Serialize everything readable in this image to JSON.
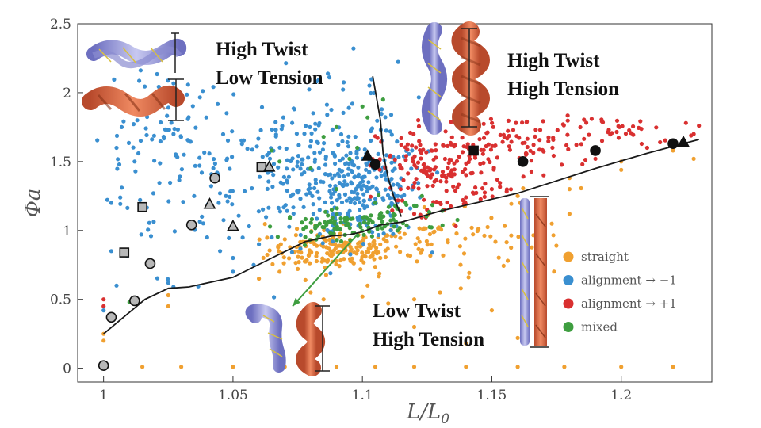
{
  "chart_data": {
    "type": "scatter",
    "title": "",
    "xlabel": "L/L₀",
    "ylabel": "Φa",
    "xlim": [
      0.99,
      1.235
    ],
    "ylim": [
      -0.1,
      2.5
    ],
    "xticks": [
      1,
      1.05,
      1.1,
      1.15,
      1.2
    ],
    "yticks": [
      0,
      0.5,
      1,
      1.5,
      2,
      2.5
    ],
    "xtick_labels": [
      "1",
      "1.05",
      "1.1",
      "1.15",
      "1.2"
    ],
    "ytick_labels": [
      "0",
      "0.5",
      "1",
      "1.5",
      "2",
      "2.5"
    ],
    "grid": false,
    "legend_position": "lower-right",
    "colors": {
      "straight": "#f0a030",
      "alignment_minus": "#3a8fd0",
      "alignment_plus": "#d93030",
      "mixed": "#3e9e40"
    },
    "series": [
      {
        "name": "straight",
        "color": "#f0a030",
        "clusters": [
          {
            "cx": 1.09,
            "cy": 0.86,
            "sx": 0.013,
            "sy": 0.07,
            "n": 170
          },
          {
            "cx": 1.125,
            "cy": 0.92,
            "sx": 0.018,
            "sy": 0.11,
            "n": 60
          },
          {
            "cx": 1.16,
            "cy": 1.08,
            "sx": 0.012,
            "sy": 0.13,
            "n": 22
          }
        ],
        "points": [
          [
            1,
            0.01
          ],
          [
            1.015,
            0.01
          ],
          [
            1.03,
            0.01
          ],
          [
            1.05,
            0.01
          ],
          [
            1.07,
            0.01
          ],
          [
            1.09,
            0.01
          ],
          [
            1.105,
            0.01
          ],
          [
            1.12,
            0.01
          ],
          [
            1.14,
            0.01
          ],
          [
            1.16,
            0.01
          ],
          [
            1.178,
            0.01
          ],
          [
            1.2,
            0.01
          ],
          [
            1.22,
            0.01
          ],
          [
            1,
            0.2
          ],
          [
            1,
            0.25
          ],
          [
            1.025,
            0.45
          ],
          [
            1.025,
            0.53
          ],
          [
            1.2,
            1.44
          ],
          [
            1.2,
            1.5
          ],
          [
            1.22,
            1.58
          ],
          [
            1.228,
            1.52
          ],
          [
            1.18,
            1.3
          ],
          [
            1.18,
            1.38
          ],
          [
            1.16,
            1.25
          ],
          [
            1.17,
            1.22
          ],
          [
            1.075,
            0.72
          ],
          [
            1.078,
            0.64
          ],
          [
            1.08,
            0.55
          ],
          [
            1.085,
            0.5
          ],
          [
            1.1,
            0.52
          ],
          [
            1.102,
            0.6
          ],
          [
            1.11,
            0.47
          ],
          [
            1.12,
            0.5
          ],
          [
            1.13,
            0.55
          ],
          [
            1.138,
            0.58
          ],
          [
            1.141,
            0.66
          ],
          [
            1.15,
            0.42
          ],
          [
            1.12,
            0.3
          ],
          [
            1.14,
            0.18
          ],
          [
            1.16,
            0.22
          ],
          [
            1.06,
            0.65
          ],
          [
            1.068,
            0.7
          ]
        ]
      },
      {
        "name": "alignment → −1",
        "color": "#3a8fd0",
        "clusters": [
          {
            "cx": 1.1,
            "cy": 1.3,
            "sx": 0.012,
            "sy": 0.18,
            "n": 240
          },
          {
            "cx": 1.075,
            "cy": 1.4,
            "sx": 0.016,
            "sy": 0.22,
            "n": 130
          },
          {
            "cx": 1.04,
            "cy": 1.45,
            "sx": 0.018,
            "sy": 0.3,
            "n": 70
          },
          {
            "cx": 1.025,
            "cy": 1.9,
            "sx": 0.008,
            "sy": 0.18,
            "n": 40
          },
          {
            "cx": 1.085,
            "cy": 1.9,
            "sx": 0.018,
            "sy": 0.18,
            "n": 38
          },
          {
            "cx": 1.01,
            "cy": 1.2,
            "sx": 0.01,
            "sy": 0.3,
            "n": 22
          }
        ],
        "points": [
          [
            1,
            0.42
          ],
          [
            1.025,
            0.62
          ],
          [
            1.027,
            0.59
          ],
          [
            1.005,
            0.6
          ],
          [
            1.003,
            0.85
          ],
          [
            1.003,
            1.2
          ],
          [
            1.007,
            1.75
          ],
          [
            1.005,
            1.6
          ],
          [
            1.012,
            1.5
          ],
          [
            1.013,
            1.8
          ],
          [
            1.035,
            1.25
          ],
          [
            1.038,
            1.1
          ],
          [
            1.04,
            0.95
          ],
          [
            1.045,
            0.85
          ],
          [
            1.05,
            0.8
          ],
          [
            1.05,
            0.7
          ],
          [
            1.058,
            0.75
          ],
          [
            1.06,
            0.9
          ],
          [
            1.065,
            0.95
          ]
        ]
      },
      {
        "name": "alignment → +1",
        "color": "#d93030",
        "clusters": [
          {
            "cx": 1.13,
            "cy": 1.45,
            "sx": 0.012,
            "sy": 0.16,
            "n": 180
          },
          {
            "cx": 1.16,
            "cy": 1.63,
            "sx": 0.015,
            "sy": 0.1,
            "n": 75
          },
          {
            "cx": 1.2,
            "cy": 1.73,
            "sx": 0.015,
            "sy": 0.05,
            "n": 40
          }
        ],
        "points": [
          [
            1,
            0.45
          ],
          [
            1,
            0.5
          ],
          [
            1.12,
            1.12
          ],
          [
            1.125,
            1.15
          ],
          [
            1.13,
            1.2
          ],
          [
            1.115,
            1.14
          ],
          [
            1.14,
            1.24
          ],
          [
            1.15,
            1.3
          ],
          [
            1.17,
            1.4
          ],
          [
            1.185,
            1.48
          ],
          [
            1.19,
            1.52
          ],
          [
            1.21,
            1.6
          ],
          [
            1.215,
            1.64
          ],
          [
            1.228,
            1.7
          ],
          [
            1.23,
            1.76
          ],
          [
            1.225,
            1.78
          ]
        ]
      },
      {
        "name": "mixed",
        "color": "#3e9e40",
        "clusters": [
          {
            "cx": 1.093,
            "cy": 1.04,
            "sx": 0.012,
            "sy": 0.05,
            "n": 95
          },
          {
            "cx": 1.115,
            "cy": 1.12,
            "sx": 0.008,
            "sy": 0.06,
            "n": 25
          }
        ],
        "points": [
          [
            1.01,
            0.48
          ],
          [
            1.1,
            1.9
          ],
          [
            1.102,
            1.82
          ],
          [
            1.09,
            1.75
          ],
          [
            1.098,
            1.6
          ],
          [
            1.085,
            1.68
          ],
          [
            1.095,
            1.52
          ],
          [
            1.08,
            1.45
          ],
          [
            1.09,
            1.3
          ],
          [
            1.105,
            1.2
          ],
          [
            1.12,
            1.18
          ],
          [
            1.123,
            1.25
          ],
          [
            1.108,
            1.95
          ],
          [
            1.065,
            1.58
          ],
          [
            1.068,
            1.5
          ]
        ]
      }
    ],
    "markers": {
      "circles_gray": [
        [
          1,
          0.02
        ],
        [
          1.003,
          0.37
        ],
        [
          1.012,
          0.49
        ],
        [
          1.018,
          0.76
        ],
        [
          1.034,
          1.04
        ],
        [
          1.043,
          1.38
        ]
      ],
      "squares_gray": [
        [
          1.008,
          0.84
        ],
        [
          1.015,
          1.17
        ],
        [
          1.061,
          1.46
        ]
      ],
      "triangles_gray": [
        [
          1.041,
          1.19
        ],
        [
          1.05,
          1.03
        ],
        [
          1.064,
          1.46
        ]
      ],
      "circles_black": [
        [
          1.105,
          1.48
        ],
        [
          1.162,
          1.5
        ],
        [
          1.19,
          1.58
        ],
        [
          1.22,
          1.63
        ]
      ],
      "squares_black": [
        [
          1.143,
          1.58
        ]
      ],
      "triangles_black": [
        [
          1.102,
          1.54
        ],
        [
          1.224,
          1.64
        ]
      ]
    },
    "boundary_line": [
      [
        1,
        0.25
      ],
      [
        1.016,
        0.5
      ],
      [
        1.025,
        0.58
      ],
      [
        1.033,
        0.59
      ],
      [
        1.05,
        0.66
      ],
      [
        1.065,
        0.8
      ],
      [
        1.078,
        0.92
      ],
      [
        1.088,
        0.96
      ],
      [
        1.095,
        0.97
      ],
      [
        1.1,
        0.99
      ],
      [
        1.107,
        1.04
      ],
      [
        1.115,
        1.06
      ],
      [
        1.13,
        1.14
      ],
      [
        1.16,
        1.27
      ],
      [
        1.19,
        1.45
      ],
      [
        1.21,
        1.56
      ],
      [
        1.23,
        1.66
      ]
    ],
    "divider_line": [
      [
        1.104,
        2.12
      ],
      [
        1.107,
        1.8
      ],
      [
        1.108,
        1.56
      ],
      [
        1.11,
        1.38
      ],
      [
        1.112,
        1.25
      ],
      [
        1.115,
        1.1
      ]
    ],
    "annotation_arrow": {
      "from": [
        1.098,
        0.97
      ],
      "to": [
        1.073,
        0.45
      ]
    },
    "region_labels": [
      {
        "lines": [
          "High Twist",
          "Low Tension"
        ]
      },
      {
        "lines": [
          "High Twist",
          "High Tension"
        ]
      },
      {
        "lines": [
          "Low Twist",
          "High Tension"
        ]
      }
    ],
    "legend": [
      {
        "label": "straight",
        "color": "#f0a030"
      },
      {
        "label": "alignment → −1",
        "color": "#3a8fd0"
      },
      {
        "label": "alignment → +1",
        "color": "#d93030"
      },
      {
        "label": "mixed",
        "color": "#3e9e40"
      }
    ]
  }
}
